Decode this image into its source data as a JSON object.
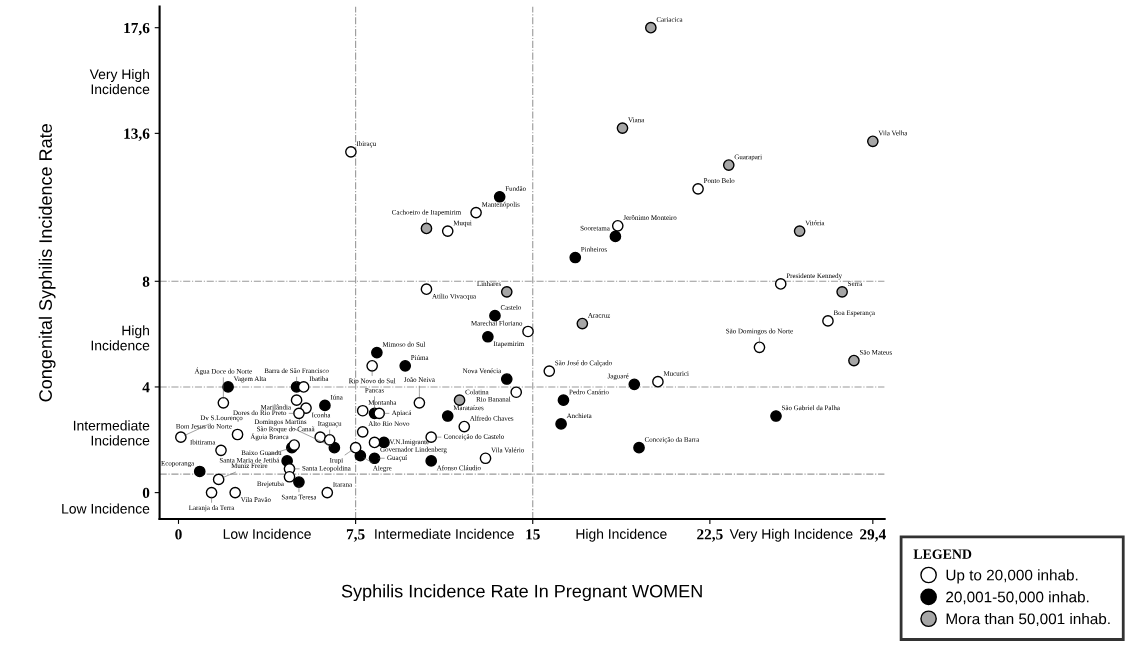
{
  "chart_data": {
    "type": "scatter",
    "xlabel": "Syphilis Incidence Rate In Pregnant WOMEN",
    "ylabel": "Congenital Syphilis Incidence Rate",
    "legend_title": "LEGEND",
    "xlim": [
      -0.8,
      29.9
    ],
    "ylim": [
      -1.0,
      18.4
    ],
    "xticks": [
      0,
      {
        "value": 3.75,
        "label": "Low Incidence"
      },
      {
        "value": 7.5,
        "label": "7,5"
      },
      {
        "value": 11.25,
        "label": "Intermediate Incidence"
      },
      15,
      {
        "value": 18.75,
        "label": "High Incidence"
      },
      {
        "value": 22.5,
        "label": "22,5"
      },
      {
        "value": 25.95,
        "label": "Very High Incidence"
      },
      {
        "value": 29.4,
        "label": "29,4"
      }
    ],
    "yticks": [
      {
        "value": -0.6,
        "label": "Low Incidence"
      },
      0,
      {
        "value": 2.3,
        "label": "Intermediate\nIncidence"
      },
      4,
      {
        "value": 5.9,
        "label": "High\nIncidence"
      },
      8,
      {
        "value": 13.6,
        "label": "13,6"
      },
      {
        "value": 15.6,
        "label": "Very High\nIncidence"
      },
      {
        "value": 17.6,
        "label": "17,6"
      }
    ],
    "grid": false,
    "legend": "bottom right",
    "marker": "circle",
    "ref_lines": [
      {
        "axis": "x",
        "value": 7.5,
        "color": "#999999",
        "line_style": "dashdot"
      },
      {
        "axis": "x",
        "value": 15,
        "color": "#999999",
        "line_style": "dashdot"
      },
      {
        "axis": "y",
        "value": 0.7,
        "color": "#999999",
        "line_style": "dashdot"
      },
      {
        "axis": "y",
        "value": 4,
        "color": "#999999",
        "line_style": "dashdot"
      },
      {
        "axis": "y",
        "value": 8,
        "color": "#999999",
        "line_style": "dashdot"
      }
    ],
    "series": [
      {
        "name": "Up to 20,000 inhab.",
        "color": "#ffffff",
        "x": [
          5.3,
          5.0,
          1.9,
          5.4,
          5.1,
          0.1,
          2.5,
          6.0,
          4.9,
          6.4,
          7.5,
          4.7,
          1.7,
          4.7,
          1.4,
          2.4,
          6.3,
          1.8,
          7.8,
          7.8,
          8.5,
          8.3,
          10.2,
          14.3,
          12.1,
          10.7,
          13.0,
          8.2,
          14.8,
          15.7,
          20.3,
          7.3,
          12.6,
          11.4,
          10.5,
          22.0,
          18.6,
          25.5,
          27.5,
          24.6
        ],
        "values": [
          4.0,
          3.5,
          3.4,
          3.2,
          3.0,
          2.1,
          2.2,
          2.1,
          1.8,
          2.0,
          1.7,
          0.9,
          0.5,
          0.6,
          0.0,
          0.0,
          0.0,
          1.6,
          2.3,
          3.1,
          3.0,
          1.9,
          3.4,
          3.8,
          2.5,
          2.1,
          1.3,
          4.8,
          6.1,
          4.6,
          4.2,
          12.9,
          10.6,
          9.9,
          7.7,
          11.5,
          10.1,
          7.9,
          6.5,
          5.5
        ]
      },
      {
        "name": "20,001-50,000 inhab.",
        "color": "#000000",
        "x": [
          2.1,
          5.0,
          6.2,
          4.8,
          6.6,
          4.6,
          0.9,
          5.1,
          8.3,
          8.7,
          7.7,
          8.3,
          11.4,
          13.9,
          10.7,
          19.3,
          16.3,
          16.2,
          19.5,
          13.6,
          13.4,
          13.1,
          8.4,
          9.6,
          18.5,
          16.8,
          25.3
        ],
        "values": [
          4.0,
          4.0,
          3.3,
          1.7,
          1.7,
          1.2,
          0.8,
          0.4,
          3.0,
          1.9,
          1.4,
          1.3,
          2.9,
          4.3,
          1.2,
          4.1,
          3.5,
          2.6,
          1.7,
          11.2,
          6.7,
          5.9,
          5.3,
          4.8,
          9.7,
          8.9,
          2.9
        ]
      },
      {
        "name": "Mora than 50,001 inhab.",
        "color": "#a6a6a6",
        "x": [
          11.9,
          17.1,
          10.5,
          13.9,
          20.0,
          18.8,
          23.3,
          29.4,
          26.3,
          28.1,
          28.6
        ],
        "values": [
          3.5,
          6.4,
          10.0,
          7.6,
          17.6,
          13.8,
          12.4,
          13.3,
          9.9,
          7.6,
          5.0
        ]
      }
    ],
    "annotations": [
      {
        "text": "Ibatiba",
        "x": 5.3,
        "y": 4.0
      },
      {
        "text": "Marilândia",
        "x": 5.0,
        "y": 3.5
      },
      {
        "text": "Água Doce do Norte",
        "x": 1.9,
        "y": 3.4
      },
      {
        "text": "Iconha",
        "x": 5.4,
        "y": 3.2
      },
      {
        "text": "Dores do Rio Preto",
        "x": 5.1,
        "y": 3.0
      },
      {
        "text": "Dv S.Lourenço",
        "x": 0.1,
        "y": 2.1
      },
      {
        "text": "Bom Jesus do Norte",
        "x": 2.5,
        "y": 2.2
      },
      {
        "text": "São Roque do Canaã",
        "x": 6.0,
        "y": 2.1
      },
      {
        "text": "Águia Branca",
        "x": 4.9,
        "y": 1.8
      },
      {
        "text": "Itaguaçu",
        "x": 6.4,
        "y": 2.0
      },
      {
        "text": "Irupi",
        "x": 7.5,
        "y": 1.7
      },
      {
        "text": "Santa Leopoldina",
        "x": 4.7,
        "y": 0.9
      },
      {
        "text": "Muniz Freire",
        "x": 1.7,
        "y": 0.5
      },
      {
        "text": "Brejetuba",
        "x": 4.7,
        "y": 0.6
      },
      {
        "text": "Laranja da Terra",
        "x": 1.4,
        "y": 0.0
      },
      {
        "text": "Vila Pavão",
        "x": 2.4,
        "y": 0.0
      },
      {
        "text": "Itarana",
        "x": 6.3,
        "y": 0.0
      },
      {
        "text": "Ibitirama",
        "x": 1.8,
        "y": 1.6
      },
      {
        "text": "Alto Rio Novo",
        "x": 7.8,
        "y": 2.3
      },
      {
        "text": "Montanha",
        "x": 7.8,
        "y": 3.1
      },
      {
        "text": "Apiacá",
        "x": 8.5,
        "y": 3.0
      },
      {
        "text": "Governador Lindenberg",
        "x": 8.3,
        "y": 1.9
      },
      {
        "text": "João Neiva",
        "x": 10.2,
        "y": 3.4
      },
      {
        "text": "Rio Bananal",
        "x": 14.3,
        "y": 3.8
      },
      {
        "text": "Alfredo Chaves",
        "x": 12.1,
        "y": 2.5
      },
      {
        "text": "Conceição do Castelo",
        "x": 10.7,
        "y": 2.1
      },
      {
        "text": "Vila Valério",
        "x": 13.0,
        "y": 1.3
      },
      {
        "text": "Rio Novo do Sul",
        "x": 8.2,
        "y": 4.8
      },
      {
        "text": "Marechal Floriano",
        "x": 14.8,
        "y": 6.1
      },
      {
        "text": "São José do Calçado",
        "x": 15.7,
        "y": 4.6
      },
      {
        "text": "Mucurici",
        "x": 20.3,
        "y": 4.2
      },
      {
        "text": "Ibiraçu",
        "x": 7.3,
        "y": 12.9
      },
      {
        "text": "Mantenópolis",
        "x": 12.6,
        "y": 10.6
      },
      {
        "text": "Muqui",
        "x": 11.4,
        "y": 9.9
      },
      {
        "text": "Atílio Vivacqua",
        "x": 10.5,
        "y": 7.7
      },
      {
        "text": "Ponto Belo",
        "x": 22.0,
        "y": 11.5
      },
      {
        "text": "Jerônimo Monteiro",
        "x": 18.6,
        "y": 10.1
      },
      {
        "text": "Presidente Kennedy",
        "x": 25.5,
        "y": 7.9
      },
      {
        "text": "Boa Esperança",
        "x": 27.5,
        "y": 6.5
      },
      {
        "text": "São Domingos do Norte",
        "x": 24.6,
        "y": 5.5
      },
      {
        "text": "Vagem Alta",
        "x": 2.1,
        "y": 4.0
      },
      {
        "text": "Barra de São Francisco",
        "x": 5.0,
        "y": 4.0
      },
      {
        "text": "Iúna",
        "x": 6.2,
        "y": 3.3
      },
      {
        "text": "Santa Maria de Jetibá",
        "x": 4.8,
        "y": 1.7
      },
      {
        "text": "Domingos Martins",
        "x": 6.6,
        "y": 1.7
      },
      {
        "text": "Baixo Guandu",
        "x": 4.6,
        "y": 1.2
      },
      {
        "text": "Ecoporanga",
        "x": 0.9,
        "y": 0.8
      },
      {
        "text": "Santa Teresa",
        "x": 5.1,
        "y": 0.4
      },
      {
        "text": "Pancas",
        "x": 8.3,
        "y": 3.0
      },
      {
        "text": "V.N.Imigrante",
        "x": 8.7,
        "y": 1.9
      },
      {
        "text": "Alegre",
        "x": 7.7,
        "y": 1.4
      },
      {
        "text": "Guaçuí",
        "x": 8.3,
        "y": 1.3
      },
      {
        "text": "Marataízes",
        "x": 11.4,
        "y": 2.9
      },
      {
        "text": "Nova Venécia",
        "x": 13.9,
        "y": 4.3
      },
      {
        "text": "Afonso Cláudio",
        "x": 10.7,
        "y": 1.2
      },
      {
        "text": "Jaguaré",
        "x": 19.3,
        "y": 4.1
      },
      {
        "text": "Pedro Canário",
        "x": 16.3,
        "y": 3.5
      },
      {
        "text": "Anchieta",
        "x": 16.2,
        "y": 2.6
      },
      {
        "text": "Conceição da Barra",
        "x": 19.5,
        "y": 1.7
      },
      {
        "text": "Fundão",
        "x": 13.6,
        "y": 11.2
      },
      {
        "text": "Castelo",
        "x": 13.4,
        "y": 6.7
      },
      {
        "text": "Itapemirim",
        "x": 13.1,
        "y": 5.9
      },
      {
        "text": "Mimoso do Sul",
        "x": 8.4,
        "y": 5.3
      },
      {
        "text": "Piúma",
        "x": 9.6,
        "y": 4.8
      },
      {
        "text": "Sooretama",
        "x": 18.5,
        "y": 9.7
      },
      {
        "text": "Pinheiros",
        "x": 16.8,
        "y": 8.9
      },
      {
        "text": "São Gabriel da Palha",
        "x": 25.3,
        "y": 2.9
      },
      {
        "text": "Colatina",
        "x": 11.9,
        "y": 3.5
      },
      {
        "text": "Aracruz",
        "x": 17.1,
        "y": 6.4
      },
      {
        "text": "Cachoeiro de Itapemirim",
        "x": 10.5,
        "y": 10.0
      },
      {
        "text": "Linhares",
        "x": 13.9,
        "y": 7.6
      },
      {
        "text": "Cariacica",
        "x": 20.0,
        "y": 17.6
      },
      {
        "text": "Viana",
        "x": 18.8,
        "y": 13.8
      },
      {
        "text": "Guarapari",
        "x": 23.3,
        "y": 12.4
      },
      {
        "text": "Vila Velha",
        "x": 29.4,
        "y": 13.3
      },
      {
        "text": "Vitória",
        "x": 26.3,
        "y": 9.9
      },
      {
        "text": "Serra",
        "x": 28.1,
        "y": 7.6
      },
      {
        "text": "São Mateus",
        "x": 28.6,
        "y": 5.0
      }
    ]
  }
}
